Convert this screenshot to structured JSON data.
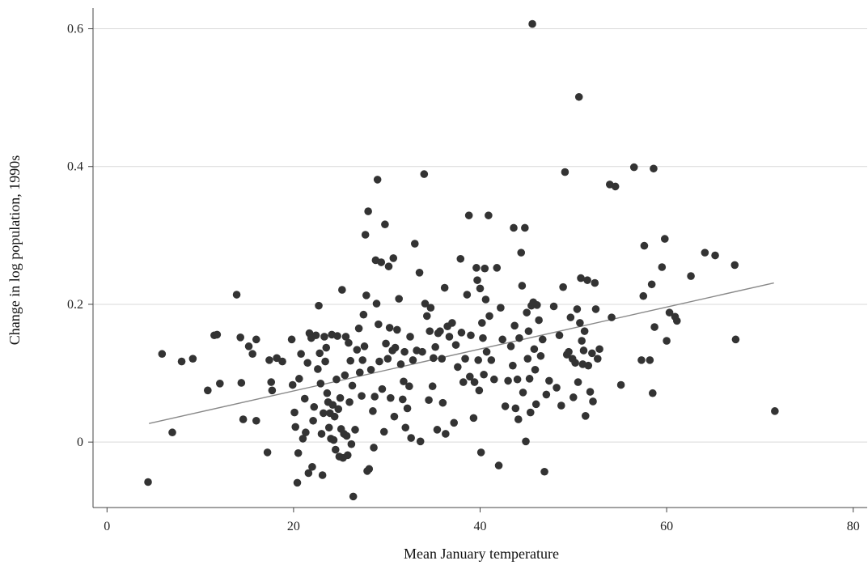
{
  "chart_data": {
    "type": "scatter",
    "title": "",
    "xlabel": "Mean January temperature",
    "ylabel": "Change in log population, 1990s",
    "xlim": [
      -1.5,
      81.5
    ],
    "ylim": [
      -0.095,
      0.63
    ],
    "xticks": [
      0,
      20,
      40,
      60,
      80
    ],
    "xtick_labels": [
      "0",
      "20",
      "40",
      "60",
      "80"
    ],
    "yticks": [
      0,
      0.2,
      0.4,
      0.6
    ],
    "ytick_labels": [
      "0",
      "0.2",
      "0.4",
      "0.6"
    ],
    "grid": "horizontal",
    "legend": "none",
    "colors": {
      "point": "#333333",
      "fit_line": "#888888",
      "grid": "#d9d9d9",
      "axis": "#444444"
    },
    "fit_line": {
      "x": [
        4.5,
        71.5
      ],
      "y": [
        0.027,
        0.231
      ]
    },
    "points": [
      [
        4.4,
        -0.058
      ],
      [
        5.9,
        0.128
      ],
      [
        7.0,
        0.014
      ],
      [
        8.0,
        0.117
      ],
      [
        9.2,
        0.121
      ],
      [
        10.8,
        0.075
      ],
      [
        11.5,
        0.155
      ],
      [
        11.8,
        0.156
      ],
      [
        12.1,
        0.085
      ],
      [
        13.9,
        0.214
      ],
      [
        14.3,
        0.152
      ],
      [
        14.4,
        0.086
      ],
      [
        14.6,
        0.033
      ],
      [
        15.2,
        0.139
      ],
      [
        15.6,
        0.128
      ],
      [
        16.0,
        0.149
      ],
      [
        16.0,
        0.031
      ],
      [
        17.2,
        -0.015
      ],
      [
        17.4,
        0.119
      ],
      [
        17.6,
        0.087
      ],
      [
        17.7,
        0.075
      ],
      [
        18.2,
        0.122
      ],
      [
        18.8,
        0.117
      ],
      [
        19.8,
        0.149
      ],
      [
        19.9,
        0.083
      ],
      [
        20.1,
        0.043
      ],
      [
        20.2,
        0.022
      ],
      [
        20.4,
        -0.059
      ],
      [
        20.5,
        -0.016
      ],
      [
        20.6,
        0.092
      ],
      [
        20.8,
        0.128
      ],
      [
        21.0,
        0.005
      ],
      [
        21.2,
        0.063
      ],
      [
        21.3,
        0.014
      ],
      [
        21.5,
        0.115
      ],
      [
        21.6,
        -0.045
      ],
      [
        21.7,
        0.158
      ],
      [
        21.9,
        0.151
      ],
      [
        22.0,
        -0.036
      ],
      [
        22.1,
        0.031
      ],
      [
        22.2,
        0.051
      ],
      [
        22.4,
        0.155
      ],
      [
        22.6,
        0.106
      ],
      [
        22.7,
        0.198
      ],
      [
        22.8,
        0.129
      ],
      [
        22.9,
        0.085
      ],
      [
        23.0,
        0.012
      ],
      [
        23.1,
        -0.048
      ],
      [
        23.2,
        0.042
      ],
      [
        23.3,
        0.153
      ],
      [
        23.4,
        0.117
      ],
      [
        23.5,
        0.137
      ],
      [
        23.6,
        0.071
      ],
      [
        23.7,
        0.058
      ],
      [
        23.8,
        0.021
      ],
      [
        23.9,
        0.042
      ],
      [
        24.0,
        0.005
      ],
      [
        24.1,
        0.156
      ],
      [
        24.2,
        0.054
      ],
      [
        24.3,
        0.003
      ],
      [
        24.4,
        0.037
      ],
      [
        24.5,
        -0.011
      ],
      [
        24.6,
        0.091
      ],
      [
        24.7,
        0.154
      ],
      [
        24.8,
        0.048
      ],
      [
        24.9,
        -0.021
      ],
      [
        25.0,
        0.064
      ],
      [
        25.1,
        0.019
      ],
      [
        25.2,
        0.221
      ],
      [
        25.3,
        -0.023
      ],
      [
        25.4,
        0.012
      ],
      [
        25.5,
        0.097
      ],
      [
        25.6,
        0.153
      ],
      [
        25.7,
        0.009
      ],
      [
        25.8,
        -0.019
      ],
      [
        25.9,
        0.144
      ],
      [
        26.0,
        0.058
      ],
      [
        26.1,
        0.118
      ],
      [
        26.2,
        -0.003
      ],
      [
        26.3,
        0.082
      ],
      [
        26.4,
        -0.079
      ],
      [
        26.6,
        0.018
      ],
      [
        26.8,
        0.134
      ],
      [
        27.0,
        0.165
      ],
      [
        27.1,
        0.101
      ],
      [
        27.3,
        0.067
      ],
      [
        27.4,
        0.119
      ],
      [
        27.5,
        0.185
      ],
      [
        27.6,
        0.139
      ],
      [
        27.7,
        0.301
      ],
      [
        27.8,
        0.213
      ],
      [
        27.9,
        -0.042
      ],
      [
        28.0,
        0.335
      ],
      [
        28.1,
        -0.039
      ],
      [
        28.3,
        0.105
      ],
      [
        28.5,
        0.045
      ],
      [
        28.6,
        -0.008
      ],
      [
        28.7,
        0.066
      ],
      [
        28.8,
        0.264
      ],
      [
        28.9,
        0.201
      ],
      [
        29.0,
        0.381
      ],
      [
        29.1,
        0.171
      ],
      [
        29.2,
        0.117
      ],
      [
        29.4,
        0.261
      ],
      [
        29.5,
        0.077
      ],
      [
        29.7,
        0.015
      ],
      [
        29.8,
        0.316
      ],
      [
        29.9,
        0.143
      ],
      [
        30.1,
        0.121
      ],
      [
        30.2,
        0.255
      ],
      [
        30.3,
        0.166
      ],
      [
        30.4,
        0.064
      ],
      [
        30.6,
        0.133
      ],
      [
        30.7,
        0.267
      ],
      [
        30.8,
        0.037
      ],
      [
        30.9,
        0.137
      ],
      [
        31.1,
        0.163
      ],
      [
        31.3,
        0.208
      ],
      [
        31.5,
        0.113
      ],
      [
        31.7,
        0.062
      ],
      [
        31.8,
        0.088
      ],
      [
        31.9,
        0.131
      ],
      [
        32.0,
        0.021
      ],
      [
        32.2,
        0.049
      ],
      [
        32.4,
        0.081
      ],
      [
        32.5,
        0.153
      ],
      [
        32.6,
        0.006
      ],
      [
        32.8,
        0.119
      ],
      [
        33.0,
        0.288
      ],
      [
        33.2,
        0.133
      ],
      [
        33.5,
        0.246
      ],
      [
        33.6,
        0.001
      ],
      [
        33.8,
        0.131
      ],
      [
        34.0,
        0.389
      ],
      [
        34.1,
        0.201
      ],
      [
        34.3,
        0.183
      ],
      [
        34.5,
        0.061
      ],
      [
        34.6,
        0.161
      ],
      [
        34.7,
        0.195
      ],
      [
        34.9,
        0.081
      ],
      [
        35.0,
        0.122
      ],
      [
        35.2,
        0.138
      ],
      [
        35.4,
        0.018
      ],
      [
        35.5,
        0.158
      ],
      [
        35.7,
        0.161
      ],
      [
        35.9,
        0.121
      ],
      [
        36.0,
        0.057
      ],
      [
        36.2,
        0.224
      ],
      [
        36.3,
        0.012
      ],
      [
        36.5,
        0.168
      ],
      [
        36.7,
        0.153
      ],
      [
        37.0,
        0.173
      ],
      [
        37.2,
        0.028
      ],
      [
        37.4,
        0.141
      ],
      [
        37.6,
        0.109
      ],
      [
        37.9,
        0.266
      ],
      [
        38.0,
        0.159
      ],
      [
        38.2,
        0.087
      ],
      [
        38.4,
        0.121
      ],
      [
        38.6,
        0.214
      ],
      [
        38.8,
        0.329
      ],
      [
        38.9,
        0.095
      ],
      [
        39.0,
        0.155
      ],
      [
        39.3,
        0.035
      ],
      [
        39.4,
        0.087
      ],
      [
        39.6,
        0.253
      ],
      [
        39.7,
        0.235
      ],
      [
        39.8,
        0.119
      ],
      [
        39.9,
        0.075
      ],
      [
        40.0,
        0.223
      ],
      [
        40.1,
        -0.015
      ],
      [
        40.2,
        0.173
      ],
      [
        40.3,
        0.151
      ],
      [
        40.4,
        0.098
      ],
      [
        40.5,
        0.252
      ],
      [
        40.6,
        0.207
      ],
      [
        40.7,
        0.131
      ],
      [
        40.9,
        0.329
      ],
      [
        41.0,
        0.183
      ],
      [
        41.2,
        0.119
      ],
      [
        41.5,
        0.091
      ],
      [
        41.8,
        0.253
      ],
      [
        42.0,
        -0.034
      ],
      [
        42.2,
        0.195
      ],
      [
        42.4,
        0.149
      ],
      [
        42.7,
        0.052
      ],
      [
        43.0,
        0.089
      ],
      [
        43.3,
        0.139
      ],
      [
        43.5,
        0.111
      ],
      [
        43.6,
        0.311
      ],
      [
        43.7,
        0.169
      ],
      [
        43.8,
        0.049
      ],
      [
        44.0,
        0.091
      ],
      [
        44.1,
        0.033
      ],
      [
        44.2,
        0.151
      ],
      [
        44.4,
        0.275
      ],
      [
        44.5,
        0.227
      ],
      [
        44.6,
        0.072
      ],
      [
        44.8,
        0.311
      ],
      [
        44.9,
        0.001
      ],
      [
        45.0,
        0.188
      ],
      [
        45.1,
        0.121
      ],
      [
        45.2,
        0.161
      ],
      [
        45.3,
        0.092
      ],
      [
        45.4,
        0.043
      ],
      [
        45.5,
        0.198
      ],
      [
        45.6,
        0.607
      ],
      [
        45.7,
        0.203
      ],
      [
        45.8,
        0.135
      ],
      [
        45.9,
        0.105
      ],
      [
        46.0,
        0.055
      ],
      [
        46.1,
        0.199
      ],
      [
        46.3,
        0.177
      ],
      [
        46.5,
        0.125
      ],
      [
        46.7,
        0.149
      ],
      [
        46.9,
        -0.043
      ],
      [
        47.1,
        0.069
      ],
      [
        47.4,
        0.089
      ],
      [
        47.9,
        0.197
      ],
      [
        48.2,
        0.079
      ],
      [
        48.5,
        0.155
      ],
      [
        48.7,
        0.053
      ],
      [
        48.9,
        0.225
      ],
      [
        49.1,
        0.392
      ],
      [
        49.3,
        0.127
      ],
      [
        49.5,
        0.131
      ],
      [
        49.7,
        0.181
      ],
      [
        49.9,
        0.121
      ],
      [
        50.0,
        0.065
      ],
      [
        50.2,
        0.115
      ],
      [
        50.4,
        0.193
      ],
      [
        50.5,
        0.087
      ],
      [
        50.6,
        0.501
      ],
      [
        50.7,
        0.173
      ],
      [
        50.8,
        0.238
      ],
      [
        50.9,
        0.147
      ],
      [
        51.0,
        0.113
      ],
      [
        51.1,
        0.133
      ],
      [
        51.2,
        0.161
      ],
      [
        51.3,
        0.038
      ],
      [
        51.5,
        0.235
      ],
      [
        51.6,
        0.111
      ],
      [
        51.8,
        0.073
      ],
      [
        52.0,
        0.129
      ],
      [
        52.1,
        0.059
      ],
      [
        52.3,
        0.231
      ],
      [
        52.4,
        0.193
      ],
      [
        52.6,
        0.121
      ],
      [
        52.8,
        0.135
      ],
      [
        53.9,
        0.374
      ],
      [
        54.1,
        0.181
      ],
      [
        54.5,
        0.371
      ],
      [
        55.1,
        0.083
      ],
      [
        56.5,
        0.399
      ],
      [
        57.3,
        0.119
      ],
      [
        57.5,
        0.212
      ],
      [
        57.6,
        0.285
      ],
      [
        58.2,
        0.119
      ],
      [
        58.4,
        0.229
      ],
      [
        58.5,
        0.071
      ],
      [
        58.6,
        0.397
      ],
      [
        58.7,
        0.167
      ],
      [
        59.5,
        0.254
      ],
      [
        59.8,
        0.295
      ],
      [
        60.0,
        0.147
      ],
      [
        60.3,
        0.188
      ],
      [
        60.9,
        0.182
      ],
      [
        61.1,
        0.176
      ],
      [
        62.6,
        0.241
      ],
      [
        64.1,
        0.275
      ],
      [
        65.2,
        0.271
      ],
      [
        67.3,
        0.257
      ],
      [
        67.4,
        0.149
      ],
      [
        71.6,
        0.045
      ]
    ]
  }
}
